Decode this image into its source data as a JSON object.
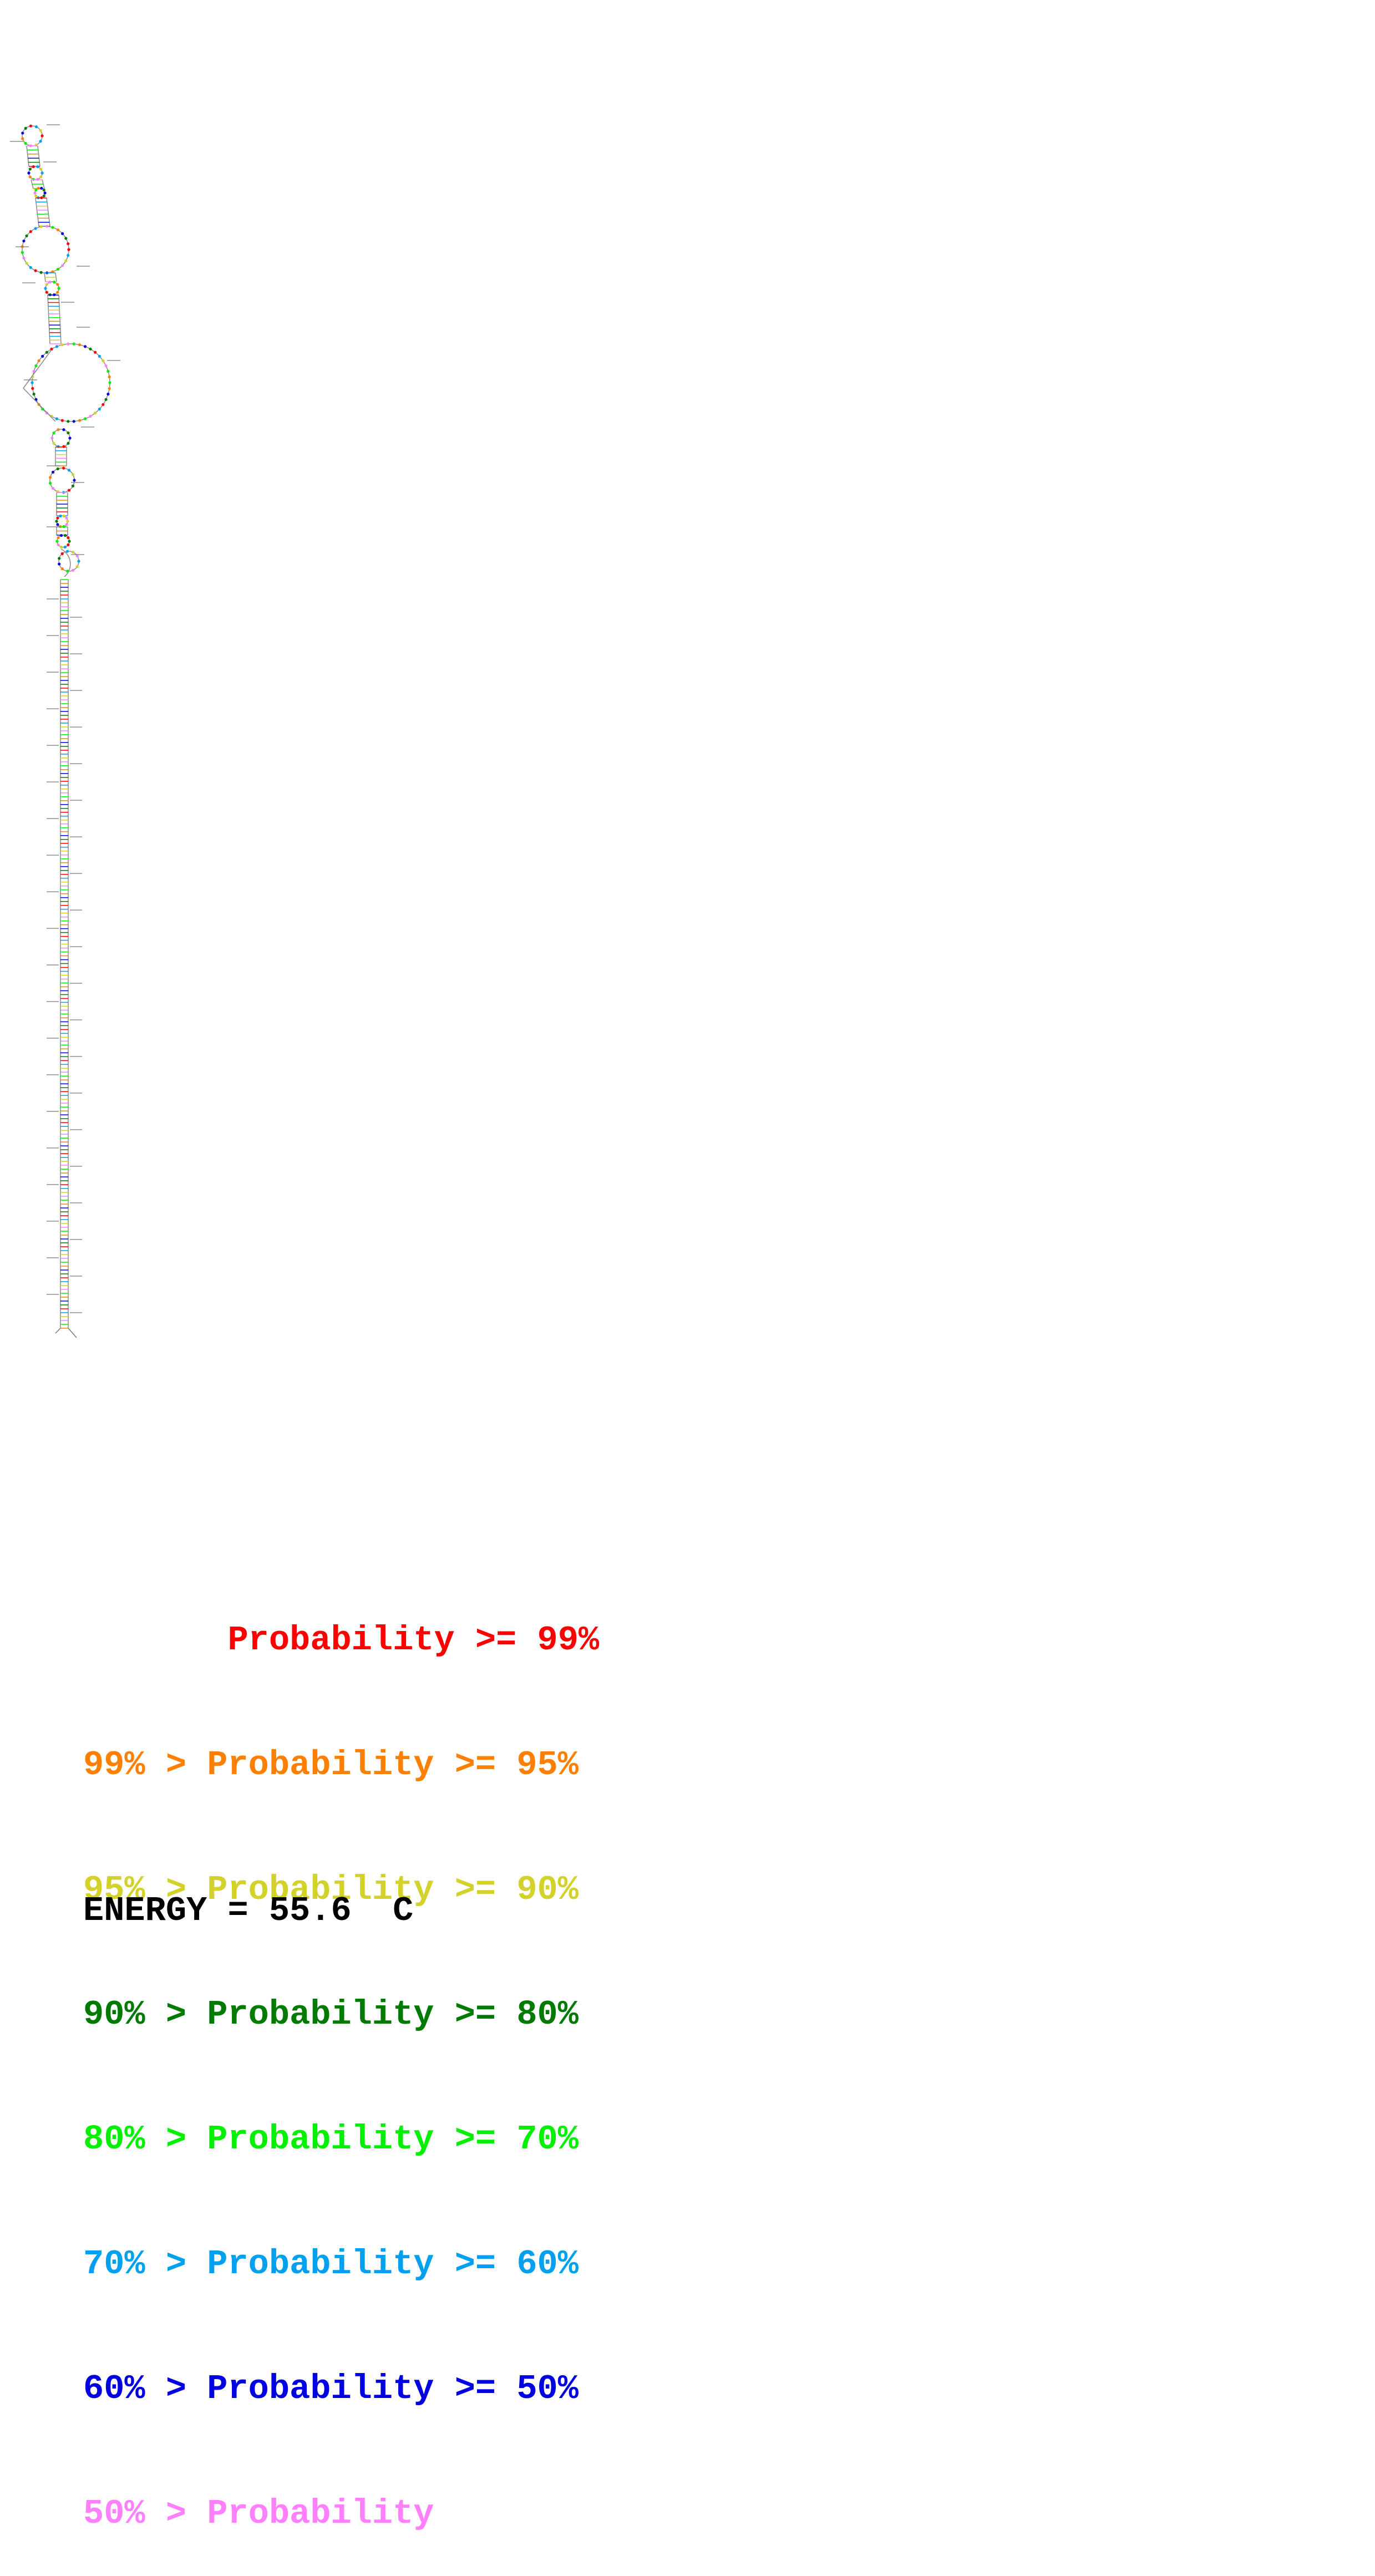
{
  "diagram": {
    "type": "rna-secondary-structure",
    "probability_color_bins": [
      {
        "prefix": "       ",
        "label": "Probability >= 99%",
        "color": "#ff0000"
      },
      {
        "prefix": "99% > ",
        "label": "Probability >= 95%",
        "color": "#ff8000"
      },
      {
        "prefix": "95% > ",
        "label": "Probability >= 90%",
        "color": "#d2d22a"
      },
      {
        "prefix": "90% > ",
        "label": "Probability >= 80%",
        "color": "#007a00"
      },
      {
        "prefix": "80% > ",
        "label": "Probability >= 70%",
        "color": "#00f000"
      },
      {
        "prefix": "70% > ",
        "label": "Probability >= 60%",
        "color": "#00a0f0"
      },
      {
        "prefix": "60% > ",
        "label": "Probability >= 50%",
        "color": "#0000e0"
      },
      {
        "prefix": "50% > ",
        "label": "Probability",
        "color": "#ff80ff"
      }
    ]
  },
  "legend": {
    "lines": [
      "       Probability >= 99%",
      "99% > Probability >= 95%",
      "95% > Probability >= 90%",
      "90% > Probability >= 80%",
      "80% > Probability >= 70%",
      "70% > Probability >= 60%",
      "60% > Probability >= 50%",
      "50% > Probability"
    ]
  },
  "energy": {
    "text": "ENERGY = 55.6  C"
  }
}
